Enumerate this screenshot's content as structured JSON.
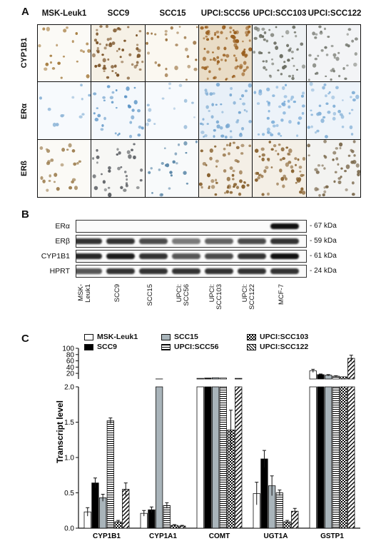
{
  "panel_a": {
    "letter": "A",
    "columns": [
      "MSK-Leuk1",
      "SCC9",
      "SCC15",
      "UPCI:SCC56",
      "UPCI:SCC103",
      "UPCI:SCC122"
    ],
    "rows": [
      "CYP1B1",
      "ERα",
      "ERß"
    ]
  },
  "panel_b": {
    "letter": "B",
    "blots": [
      {
        "label": "ERα",
        "kda": "- 67 kDa"
      },
      {
        "label": "ERβ",
        "kda": "- 59 kDa"
      },
      {
        "label": "CYP1B1",
        "kda": "- 61 kDa"
      },
      {
        "label": "HPRT",
        "kda": "- 24 kDa"
      }
    ],
    "lanes": [
      "MSK-\nLeuk1",
      "SCC9",
      "SCC15",
      "UPCI:\nSCC56",
      "UPCI:\nSCC103",
      "UPCI:\nSCC122",
      "MCF-7"
    ],
    "intensities": {
      "ERα": [
        0,
        0,
        0,
        0,
        0,
        0,
        1.0
      ],
      "ERβ": [
        0.85,
        0.85,
        0.75,
        0.55,
        0.65,
        0.75,
        0.85
      ],
      "CYP1B1": [
        0.9,
        0.95,
        0.85,
        0.7,
        0.75,
        0.85,
        1.0
      ],
      "HPRT": [
        0.7,
        0.85,
        0.85,
        0.85,
        0.85,
        0.85,
        0.85
      ]
    }
  },
  "panel_c": {
    "letter": "C"
  },
  "chart_data": {
    "type": "bar",
    "ylabel": "Transcript level",
    "categories": [
      "CYP1B1",
      "CYP1A1",
      "COMT",
      "UGT1A",
      "GSTP1"
    ],
    "y_lower_ticks": [
      "0.0",
      "0.5",
      "1.0",
      "1.5",
      "2.0"
    ],
    "y_upper_ticks": [
      "20",
      "40",
      "60",
      "80",
      "100"
    ],
    "ylim_lower": [
      0,
      2.0
    ],
    "ylim_upper": [
      2,
      100
    ],
    "series": [
      {
        "name": "MSK-Leuk1",
        "fill": "white",
        "values": [
          0.23,
          0.21,
          4,
          0.49,
          28
        ],
        "errors": [
          0.06,
          0.04,
          0.5,
          0.16,
          5
        ]
      },
      {
        "name": "SCC9",
        "fill": "black",
        "values": [
          0.64,
          0.26,
          5,
          0.98,
          16
        ],
        "errors": [
          0.07,
          0.04,
          0.5,
          0.12,
          2
        ]
      },
      {
        "name": "SCC15",
        "fill": "gray",
        "values": [
          0.43,
          2.2,
          6,
          0.6,
          14
        ],
        "errors": [
          0.05,
          0.3,
          0.5,
          0.14,
          2
        ]
      },
      {
        "name": "UPCI:SCC56",
        "fill": "hstripe",
        "values": [
          1.52,
          0.32,
          5,
          0.5,
          11
        ],
        "errors": [
          0.04,
          0.04,
          0.5,
          0.04,
          1.5
        ]
      },
      {
        "name": "UPCI:SCC103",
        "fill": "check",
        "values": [
          0.09,
          0.04,
          1.39,
          0.09,
          9
        ],
        "errors": [
          0.02,
          0.01,
          0.28,
          0.02,
          1
        ]
      },
      {
        "name": "UPCI:SCC122",
        "fill": "diag",
        "values": [
          0.55,
          0.03,
          4,
          0.24,
          68
        ],
        "errors": [
          0.09,
          0.01,
          0.5,
          0.04,
          10
        ]
      }
    ]
  }
}
